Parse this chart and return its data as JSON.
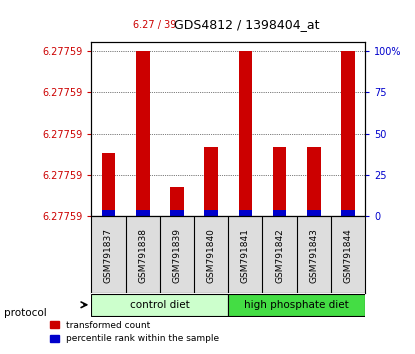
{
  "title": "GDS4812 / 1398404_at",
  "title_prefix": "6.27 / 39",
  "samples": [
    "GSM791837",
    "GSM791838",
    "GSM791839",
    "GSM791840",
    "GSM791841",
    "GSM791842",
    "GSM791843",
    "GSM791844"
  ],
  "groups": [
    {
      "name": "control diet",
      "color": "#aaffaa",
      "indices": [
        0,
        1,
        2,
        3
      ]
    },
    {
      "name": "high phosphate diet",
      "color": "#00dd00",
      "indices": [
        4,
        5,
        6,
        7
      ]
    }
  ],
  "red_bar_heights": [
    0.38,
    1.0,
    0.18,
    0.42,
    1.0,
    0.42,
    0.42,
    1.0
  ],
  "blue_bar_heights": [
    0.04,
    0.04,
    0.04,
    0.04,
    0.04,
    0.04,
    0.04,
    0.04
  ],
  "ylim_left": [
    6.27759,
    6.27759
  ],
  "yticks_left": [
    6.27759,
    6.27759,
    6.27759,
    6.27759,
    6.27759
  ],
  "ytick_labels_left": [
    "6.27759",
    "6.27759",
    "6.27759",
    "6.27759",
    "6.27759"
  ],
  "yticks_right": [
    0,
    25,
    50,
    75,
    100
  ],
  "ytick_labels_right": [
    "0",
    "25",
    "50",
    "75",
    "100%"
  ],
  "ylabel_left_color": "#cc0000",
  "ylabel_right_color": "#0000cc",
  "bar_color_red": "#cc0000",
  "bar_color_blue": "#0000cc",
  "grid_color": "#000000",
  "bg_color": "#ffffff",
  "plot_bg": "#ffffff",
  "protocol_label": "protocol",
  "legend_red": "transformed count",
  "legend_blue": "percentile rank within the sample",
  "xlabel_color": "#000000",
  "title_color": "#000000",
  "title_prefix_color": "#cc0000"
}
